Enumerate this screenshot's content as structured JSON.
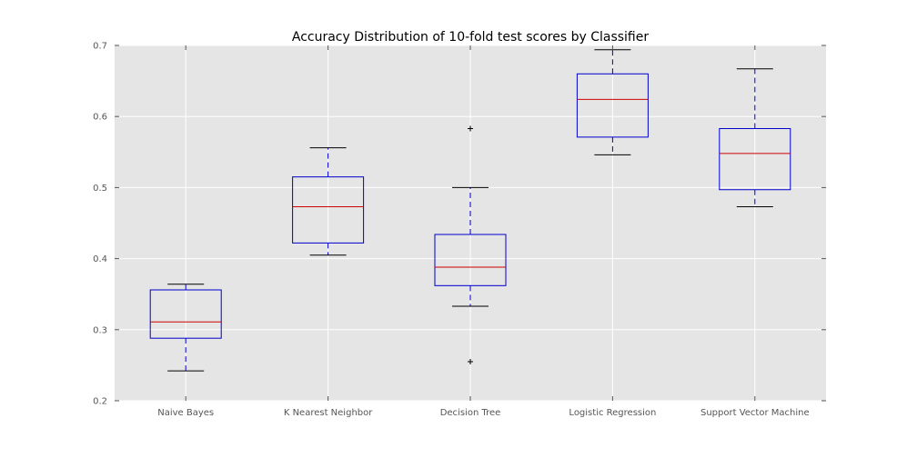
{
  "chart_data": {
    "type": "box",
    "title": "Accuracy Distribution of 10-fold test scores by Classifier",
    "xlabel": "",
    "ylabel": "",
    "ylim": [
      0.2,
      0.7
    ],
    "yticks": [
      "0.2",
      "0.3",
      "0.4",
      "0.5",
      "0.6",
      "0.7"
    ],
    "grid": true,
    "categories": [
      "Naive Bayes",
      "K Nearest Neighbor",
      "Decision Tree",
      "Logistic Regression",
      "Support Vector Machine"
    ],
    "boxes": [
      {
        "name": "Naive Bayes",
        "whisker_low": 0.242,
        "q1": 0.288,
        "median": 0.311,
        "q3": 0.356,
        "whisker_high": 0.364,
        "outliers": []
      },
      {
        "name": "K Nearest Neighbor",
        "whisker_low": 0.405,
        "q1": 0.422,
        "median": 0.473,
        "q3": 0.515,
        "whisker_high": 0.556,
        "outliers": []
      },
      {
        "name": "Decision Tree",
        "whisker_low": 0.333,
        "q1": 0.362,
        "median": 0.388,
        "q3": 0.434,
        "whisker_high": 0.5,
        "outliers": [
          0.583,
          0.255
        ]
      },
      {
        "name": "Logistic Regression",
        "whisker_low": 0.546,
        "q1": 0.571,
        "median": 0.624,
        "q3": 0.66,
        "whisker_high": 0.694,
        "outliers": []
      },
      {
        "name": "Support Vector Machine",
        "whisker_low": 0.473,
        "q1": 0.497,
        "median": 0.548,
        "q3": 0.583,
        "whisker_high": 0.667,
        "outliers": []
      }
    ],
    "colors": {
      "background": "#e5e5e5",
      "box": "#0000cc",
      "median": "#cc0000",
      "whisker": "#0000cc",
      "cap": "#000000",
      "grid": "#ffffff",
      "outlier": "#000000"
    }
  }
}
